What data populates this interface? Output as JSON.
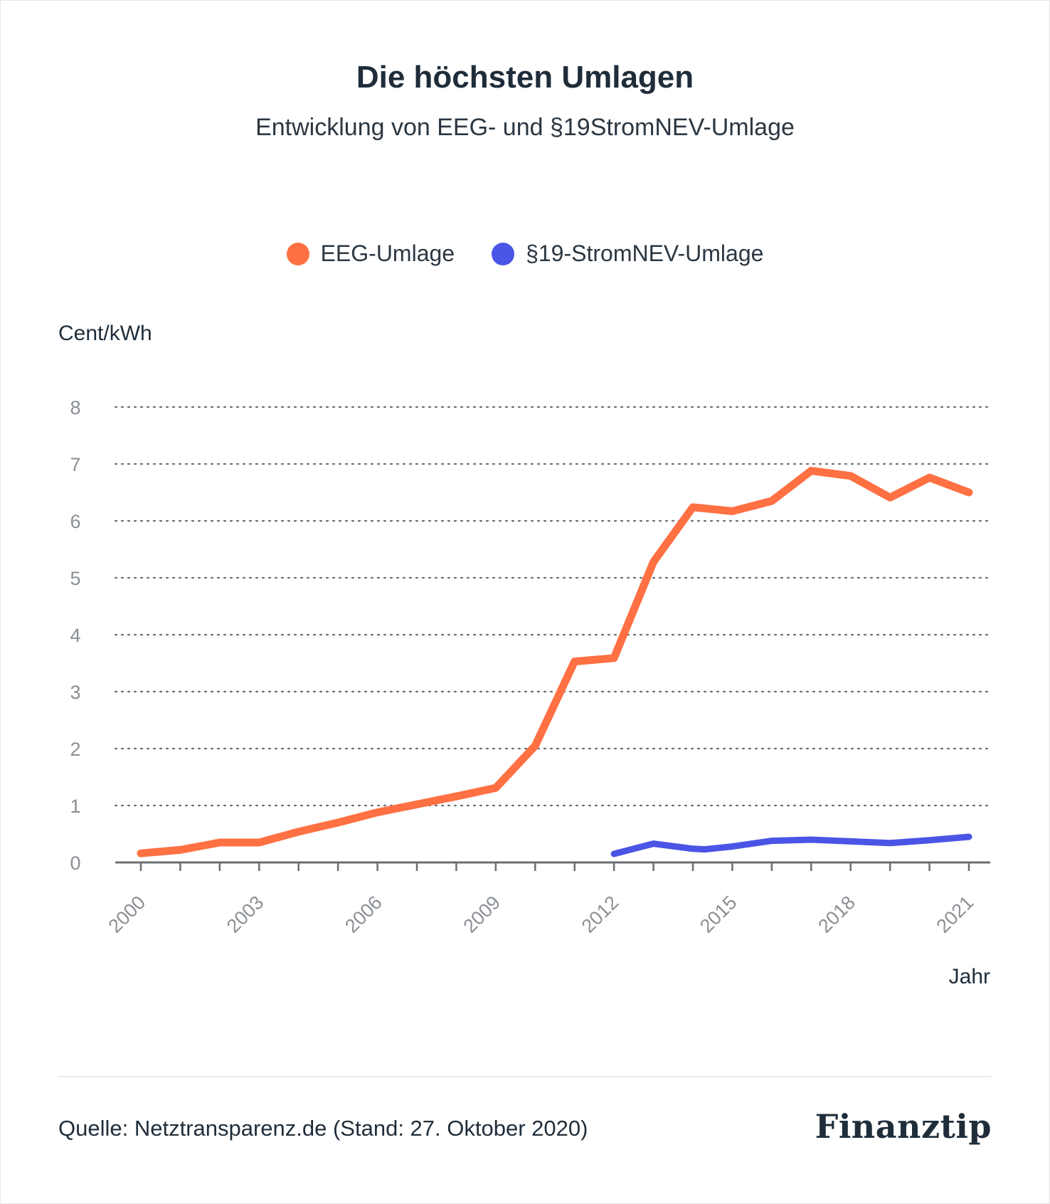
{
  "header": {
    "title": "Die höchsten Umlagen",
    "subtitle": "Entwicklung von EEG- und §19StromNEV-Umlage"
  },
  "legend": [
    {
      "label": "EEG-Umlage",
      "color": "#ff7043"
    },
    {
      "label": "§19-StromNEV-Umlage",
      "color": "#4a55e6"
    }
  ],
  "axes": {
    "y_unit": "Cent/kWh",
    "x_unit": "Jahr"
  },
  "chart_data": {
    "type": "line",
    "ylabel": "Cent/kWh",
    "xlabel": "Jahr",
    "ylim": [
      0,
      8
    ],
    "xlim": [
      2000,
      2021
    ],
    "y_ticks": [
      "0",
      "1",
      "2",
      "3",
      "4",
      "5",
      "6",
      "7",
      "8"
    ],
    "x_ticks": [
      "2000",
      "2003",
      "2006",
      "2009",
      "2012",
      "2015",
      "2018",
      "2021"
    ],
    "grid": "horizontal-dotted",
    "legend_position": "top-center",
    "series": [
      {
        "name": "EEG-Umlage",
        "color": "#ff7043",
        "x": [
          2000,
          2001,
          2002,
          2003,
          2004,
          2005,
          2006,
          2007,
          2008,
          2009,
          2010,
          2011,
          2012,
          2013,
          2014,
          2015,
          2016,
          2017,
          2018,
          2019,
          2020,
          2021
        ],
        "y": [
          0.16,
          0.22,
          0.35,
          0.35,
          0.54,
          0.7,
          0.88,
          1.02,
          1.16,
          1.31,
          2.05,
          3.53,
          3.59,
          5.28,
          6.24,
          6.17,
          6.35,
          6.88,
          6.79,
          6.41,
          6.76,
          6.5
        ]
      },
      {
        "name": "§19-StromNEV-Umlage",
        "color": "#4a55e6",
        "x": [
          2012,
          2013,
          2014,
          2014.3,
          2015,
          2016,
          2017,
          2018,
          2019,
          2020,
          2021
        ],
        "y": [
          0.15,
          0.33,
          0.24,
          0.23,
          0.28,
          0.38,
          0.4,
          0.37,
          0.34,
          0.39,
          0.45
        ]
      }
    ]
  },
  "footer": {
    "source": "Quelle: Netztransparenz.de (Stand: 27. Oktober 2020)",
    "brand": "Finanztip"
  }
}
